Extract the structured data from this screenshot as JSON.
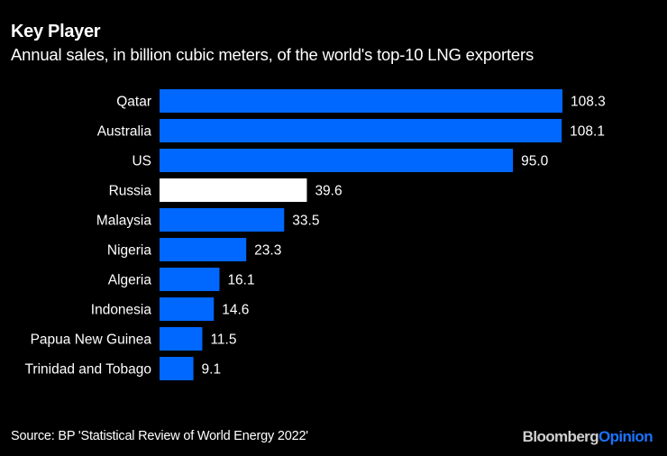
{
  "header": {
    "title": "Key Player",
    "subtitle": "Annual sales, in billion cubic meters, of the world's top-10 LNG exporters"
  },
  "footer": {
    "source": "Source: BP 'Statistical Review of World Energy 2022'",
    "brand_part1": "Bloomberg",
    "brand_part2": "Opinion"
  },
  "colors": {
    "background": "#000000",
    "bar_default": "#0068ff",
    "bar_highlight": "#ffffff",
    "text": "#ffffff",
    "brand_accent": "#1a73ff"
  },
  "chart_data": {
    "type": "bar",
    "orientation": "horizontal",
    "title": "Key Player",
    "subtitle": "Annual sales, in billion cubic meters, of the world's top-10 LNG exporters",
    "xlabel": "",
    "ylabel": "",
    "unit": "billion cubic meters",
    "categories": [
      "Qatar",
      "Australia",
      "US",
      "Russia",
      "Malaysia",
      "Nigeria",
      "Algeria",
      "Indonesia",
      "Papua New Guinea",
      "Trinidad and Tobago"
    ],
    "values": [
      108.3,
      108.1,
      95.0,
      39.6,
      33.5,
      23.3,
      16.1,
      14.6,
      11.5,
      9.1
    ],
    "value_labels": [
      "108.3",
      "108.1",
      "95.0",
      "39.6",
      "33.5",
      "23.3",
      "16.1",
      "14.6",
      "11.5",
      "9.1"
    ],
    "highlight": [
      "Russia"
    ],
    "xlim": [
      0,
      108.3
    ],
    "grid": false,
    "legend": "none",
    "source": "BP 'Statistical Review of World Energy 2022'"
  }
}
